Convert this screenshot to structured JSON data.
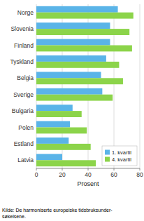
{
  "chart_data": {
    "type": "bar",
    "orientation": "horizontal",
    "categories": [
      "Norge",
      "Slovenia",
      "Finland",
      "Tyskland",
      "Belgia",
      "Sverige",
      "Bulgaria",
      "Polen",
      "Estland",
      "Latvia"
    ],
    "series": [
      {
        "name": "1. kvartil",
        "color": "#5ab4e8",
        "values": [
          63,
          57,
          57,
          54,
          50,
          51,
          28,
          26,
          25,
          20
        ]
      },
      {
        "name": "4. kvartil",
        "color": "#8cd44a",
        "values": [
          75,
          72,
          74,
          64,
          67,
          59,
          35,
          39,
          42,
          46
        ]
      }
    ],
    "xlabel": "Prosent",
    "xlim": [
      0,
      80
    ],
    "xticks": [
      0,
      20,
      40,
      60,
      80
    ],
    "grid": true,
    "legend": "lower right",
    "annotations": [
      "Kilde: De harmoniserte europeiske tidsbruksunder-\nsøkelsene."
    ]
  }
}
